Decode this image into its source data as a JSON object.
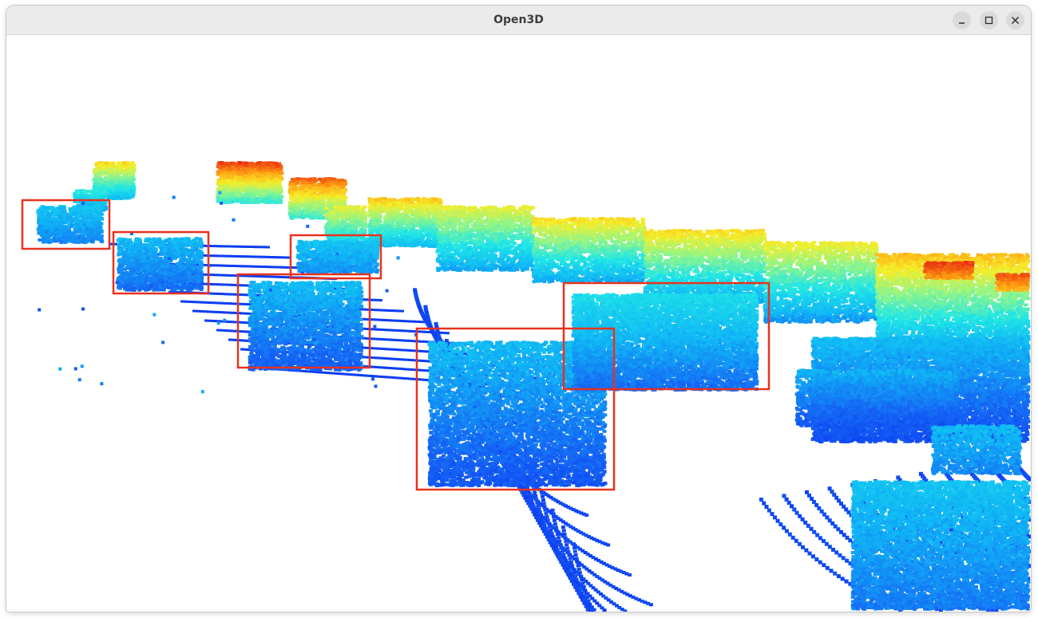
{
  "window": {
    "title": "Open3D",
    "controls": [
      "minimize-icon",
      "maximize-icon",
      "close-icon"
    ]
  },
  "viewer": {
    "background": "#ffffff",
    "box_color": "#e8321e",
    "colormap": [
      "#0a2ff0",
      "#1565f5",
      "#10b8f5",
      "#20e6e6",
      "#8ef58a",
      "#f6ee28",
      "#ff9a12",
      "#e82a10"
    ]
  }
}
